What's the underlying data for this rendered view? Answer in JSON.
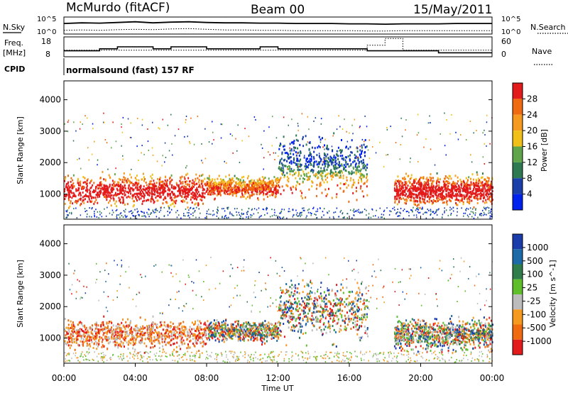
{
  "header": {
    "station": "McMurdo (fitACF)",
    "beam": "Beam 00",
    "date": "15/May/2011"
  },
  "noise_panel": {
    "left_label": "N.Sky",
    "right_label": "N.Search",
    "left_top": "10^5",
    "left_bottom": "10^0",
    "right_top": "10^5",
    "right_bottom": "10^0"
  },
  "freq_panel": {
    "left_label_1": "Freq.",
    "left_label_2": "[MHz]",
    "right_label": "Nave",
    "left_top": "18",
    "left_bottom": "8",
    "right_top": "60",
    "right_bottom": "0"
  },
  "cpid": {
    "label": "CPID",
    "text": "normalsound (fast) 157 RF"
  },
  "colors": {
    "power_bar": [
      "#0022ee",
      "#1b3fa8",
      "#2d7a52",
      "#5fa64a",
      "#f0c018",
      "#f59a1e",
      "#f06a10",
      "#e41b1b"
    ],
    "velocity_bar": [
      "#e41b1b",
      "#f06a10",
      "#f59a1e",
      "#bcbcbc",
      "#5fbf2a",
      "#2e7d4a",
      "#1d6aa8",
      "#1a3dab"
    ]
  },
  "chart_data": [
    {
      "type": "heatmap",
      "panel": "power",
      "ylabel": "Slant Range [km]",
      "yticks": [
        "1000",
        "2000",
        "3000",
        "4000"
      ],
      "ylim": [
        200,
        4600
      ],
      "colorbar_label": "Power [dB]",
      "colorbar_ticks": [
        "4",
        "8",
        "12",
        "16",
        "20",
        "24",
        "28"
      ],
      "colorbar_range": [
        0,
        32
      ],
      "echo_regions_utc_hours": [
        {
          "t": [
            0.0,
            8.0
          ],
          "range_km": [
            500,
            1800
          ],
          "level": "high"
        },
        {
          "t": [
            8.0,
            12.0
          ],
          "range_km": [
            800,
            1700
          ],
          "level": "mid"
        },
        {
          "t": [
            12.0,
            17.0
          ],
          "range_km": [
            700,
            3100
          ],
          "level": "mid"
        },
        {
          "t": [
            18.5,
            24.0
          ],
          "range_km": [
            500,
            1800
          ],
          "level": "high"
        }
      ]
    },
    {
      "type": "heatmap",
      "panel": "velocity",
      "xlabel": "Time UT",
      "ylabel": "Slant Range [km]",
      "xticks": [
        "00:00",
        "04:00",
        "08:00",
        "12:00",
        "16:00",
        "20:00",
        "00:00"
      ],
      "yticks": [
        "1000",
        "2000",
        "3000",
        "4000"
      ],
      "ylim": [
        200,
        4600
      ],
      "colorbar_label": "Velocity [m s^-1]",
      "colorbar_ticks": [
        "-1000",
        "-500",
        "-100",
        "-25",
        "25",
        "100",
        "500",
        "1000"
      ],
      "colorbar_range": [
        -1500,
        1500
      ]
    },
    {
      "type": "line",
      "panel": "noise",
      "series": [
        {
          "name": "N.Sky",
          "values": [
            3.1,
            3.3,
            3.2,
            3.4,
            3.6,
            3.3,
            3.5,
            3.6,
            3.4,
            3.3,
            3.3,
            3.2,
            3.2,
            3.1,
            3.1,
            3.1,
            3.0,
            3.0,
            2.9,
            3.0,
            3.0,
            3.0,
            3.1,
            3.1,
            3.1
          ]
        },
        {
          "name": "N.Search",
          "values": [
            1.1,
            1.2,
            1.1,
            1.3,
            1.4,
            1.3,
            1.5,
            1.6,
            1.4,
            1.2,
            1.2,
            1.1,
            1.1,
            1.0,
            1.0,
            1.0,
            1.0,
            0.9,
            0.9,
            1.0,
            1.0,
            1.0,
            1.0,
            1.0,
            1.0
          ]
        }
      ],
      "x": [
        0,
        1,
        2,
        3,
        4,
        5,
        6,
        7,
        8,
        9,
        10,
        11,
        12,
        13,
        14,
        15,
        16,
        17,
        18,
        19,
        20,
        21,
        22,
        23,
        24
      ]
    },
    {
      "type": "line",
      "panel": "frequency",
      "series": [
        {
          "name": "Freq.",
          "values": [
            11,
            11,
            12,
            13,
            13,
            12,
            13,
            13,
            12,
            12,
            12,
            13,
            12,
            12,
            12,
            12,
            12,
            11,
            11,
            11,
            11,
            10,
            10,
            10,
            10
          ]
        },
        {
          "name": "Nave",
          "values": [
            20,
            20,
            20,
            20,
            20,
            20,
            20,
            20,
            20,
            20,
            20,
            20,
            20,
            20,
            20,
            20,
            20,
            35,
            55,
            20,
            20,
            20,
            20,
            20,
            20
          ]
        }
      ],
      "x": [
        0,
        1,
        2,
        3,
        4,
        5,
        6,
        7,
        8,
        9,
        10,
        11,
        12,
        13,
        14,
        15,
        16,
        17,
        18,
        19,
        20,
        21,
        22,
        23,
        24
      ]
    }
  ]
}
